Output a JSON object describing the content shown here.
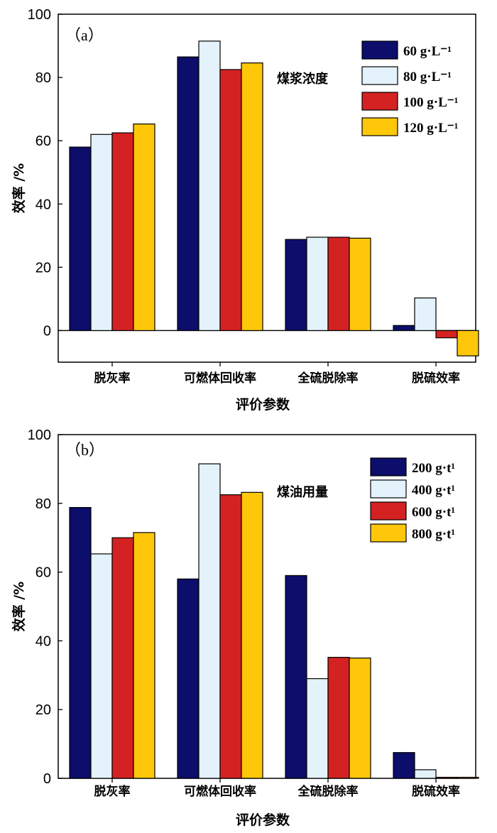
{
  "chart_data": [
    {
      "type": "bar",
      "panel_label": "（a）",
      "title": "煤浆浓度",
      "xlabel": "评价参数",
      "ylabel": "效率 /%",
      "ylim": [
        -10,
        100
      ],
      "yticks": [
        "0",
        "20",
        "40",
        "60",
        "80",
        "100"
      ],
      "categories": [
        "脱灰率",
        "可燃体回收率",
        "全硫脱除率",
        "脱硫效率"
      ],
      "legend_position": "top-right",
      "series": [
        {
          "name": "60 g·L⁻¹",
          "color": "#0d0d6b",
          "values": [
            58.0,
            86.5,
            28.8,
            1.6
          ]
        },
        {
          "name": "80 g·L⁻¹",
          "color": "#e3f2fb",
          "values": [
            62.0,
            91.5,
            29.5,
            10.3
          ]
        },
        {
          "name": "100 g·L⁻¹",
          "color": "#d42222",
          "values": [
            62.5,
            82.5,
            29.5,
            -2.3
          ]
        },
        {
          "name": "120 g·L⁻¹",
          "color": "#ffc70a",
          "values": [
            65.3,
            84.6,
            29.2,
            -8.0
          ]
        }
      ]
    },
    {
      "type": "bar",
      "panel_label": "（b）",
      "title": "煤油用量",
      "xlabel": "评价参数",
      "ylabel": "效率 /%",
      "ylim": [
        0,
        100
      ],
      "yticks": [
        "0",
        "20",
        "40",
        "60",
        "80",
        "100"
      ],
      "categories": [
        "脱灰率",
        "可燃体回收率",
        "全硫脱除率",
        "脱硫效率"
      ],
      "legend_position": "top-right",
      "series": [
        {
          "name": "200 g·t¹",
          "color": "#0d0d6b",
          "values": [
            78.8,
            58.0,
            59.0,
            7.5
          ]
        },
        {
          "name": "400 g·t¹",
          "color": "#e3f2fb",
          "values": [
            65.3,
            91.5,
            29.0,
            2.5
          ]
        },
        {
          "name": "600 g·t¹",
          "color": "#d42222",
          "values": [
            70.0,
            82.5,
            35.2,
            0.3
          ]
        },
        {
          "name": "800 g·t¹",
          "color": "#ffc70a",
          "values": [
            71.5,
            83.2,
            35.0,
            0.3
          ]
        }
      ]
    }
  ]
}
